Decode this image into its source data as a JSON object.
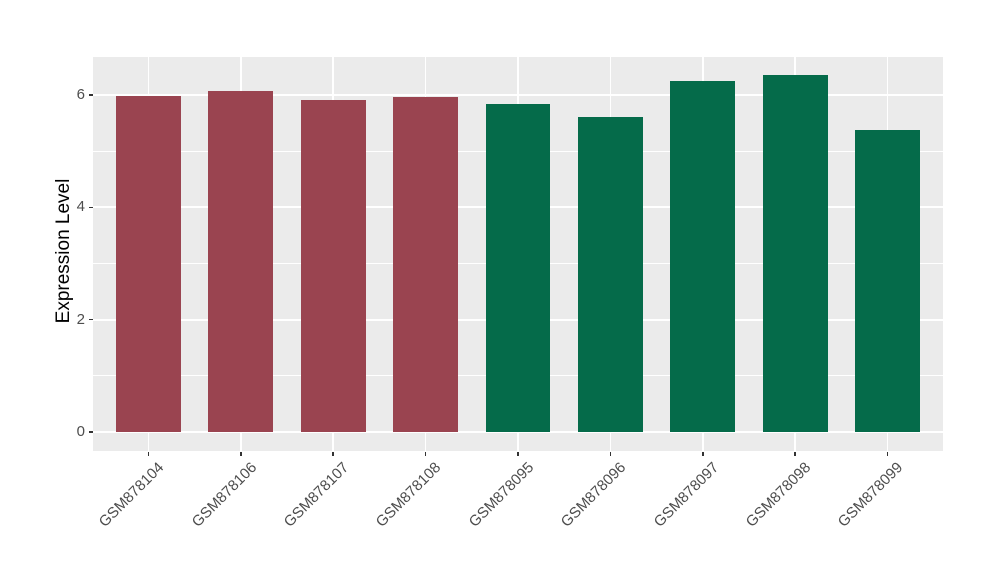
{
  "chart_data": {
    "type": "bar",
    "title": "",
    "xlabel": "",
    "ylabel": "Expression Level",
    "categories": [
      "GSM878104",
      "GSM878106",
      "GSM878107",
      "GSM878108",
      "GSM878095",
      "GSM878096",
      "GSM878097",
      "GSM878098",
      "GSM878099"
    ],
    "values": [
      5.98,
      6.07,
      5.91,
      5.97,
      5.84,
      5.6,
      6.24,
      6.36,
      5.38
    ],
    "bar_colors": [
      "#9A4450",
      "#9A4450",
      "#9A4450",
      "#9A4450",
      "#056B4A",
      "#056B4A",
      "#056B4A",
      "#056B4A",
      "#056B4A"
    ],
    "group_colors": {
      "red_group": "#9A4450",
      "green_group": "#056B4A"
    },
    "yticks": [
      0,
      2,
      4,
      6
    ],
    "minor_yticks": [
      1,
      3,
      5
    ],
    "ylim": [
      -0.34,
      6.68
    ],
    "bar_width_ratio": 0.7,
    "grid": true,
    "legend": "none",
    "panel_bg": "#EBEBEB",
    "grid_color": "#FFFFFF",
    "axis_text_color": "#4D4D4D",
    "axis_title_color": "#000000",
    "tick_mark_color": "#333333"
  }
}
